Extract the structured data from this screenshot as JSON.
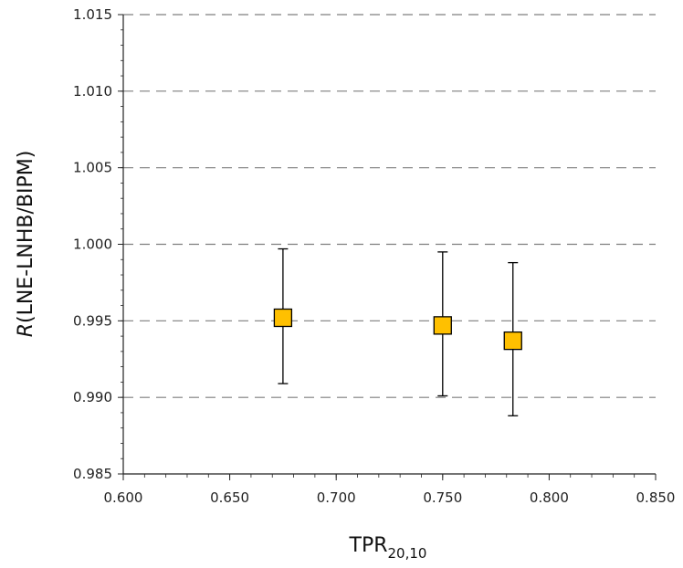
{
  "chart_data": {
    "type": "scatter",
    "xlabel": {
      "main": "TPR",
      "sub": "20,10"
    },
    "ylabel": {
      "italic": "R",
      "rest": "(LNE-LNHB/BIPM)"
    },
    "xlim": [
      0.6,
      0.85
    ],
    "ylim": [
      0.985,
      1.015
    ],
    "x_ticks": [
      "0.600",
      "0.650",
      "0.700",
      "0.750",
      "0.800",
      "0.850"
    ],
    "y_ticks": [
      "0.985",
      "0.990",
      "0.995",
      "1.000",
      "1.005",
      "1.010",
      "1.015"
    ],
    "grid": "horizontal-dashed",
    "marker": "square",
    "marker_color": "#FFC000",
    "points": [
      {
        "x": 0.675,
        "y": 0.9952,
        "err_low": 0.9909,
        "err_high": 0.9997
      },
      {
        "x": 0.75,
        "y": 0.9947,
        "err_low": 0.9901,
        "err_high": 0.9995
      },
      {
        "x": 0.783,
        "y": 0.9937,
        "err_low": 0.9888,
        "err_high": 0.9988
      }
    ]
  }
}
